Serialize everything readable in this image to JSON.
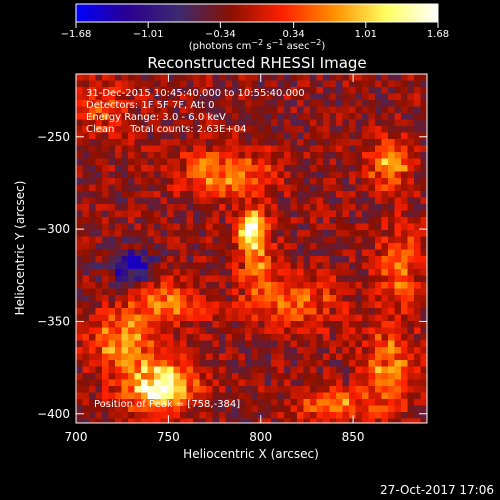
{
  "chart_data": {
    "type": "heatmap",
    "title": "Reconstructed RHESSI Image",
    "xlabel": "Heliocentric X (arcsec)",
    "ylabel": "Heliocentric Y (arcsec)",
    "xlim": [
      700,
      890
    ],
    "ylim": [
      -405,
      -216
    ],
    "x_ticks": [
      700,
      750,
      800,
      850
    ],
    "y_ticks": [
      -250,
      -300,
      -350,
      -400
    ],
    "x_tick_labels": [
      "700",
      "750",
      "800",
      "850"
    ],
    "y_tick_labels": [
      "−250",
      "−300",
      "−350",
      "−400"
    ],
    "colorbar": {
      "min": -1.68,
      "max": 1.68,
      "ticks": [
        -1.68,
        -1.01,
        -0.34,
        0.34,
        1.01,
        1.68
      ],
      "tick_labels": [
        "−1.68",
        "−1.01",
        "−0.34",
        "0.34",
        "1.01",
        "1.68"
      ],
      "unit_label_parts": [
        "(photons cm",
        "−2",
        " s",
        "−1",
        " asec",
        "−2",
        ")"
      ],
      "stops": [
        "#0000ff",
        "#2a0090",
        "#3c2a6e",
        "#8a1000",
        "#ff2000",
        "#ff9000",
        "#ffff60",
        "#ffffff"
      ]
    },
    "info_lines": [
      "31-Dec-2015 10:45:40.000 to 10:55:40.000",
      "Detectors: 1F 5F 7F, Att 0",
      "Energy Range: 3.0 - 6.0 keV",
      "Clean     Total counts: 2.63E+04"
    ],
    "peak_label": "Position of Peak = [758,-384]",
    "sources": [
      {
        "x": 795,
        "y": -300,
        "sx": 5,
        "sy": 7,
        "amp": 1.7
      },
      {
        "x": 780,
        "y": -270,
        "sx": 18,
        "sy": 9,
        "amp": 0.9
      },
      {
        "x": 798,
        "y": -320,
        "sx": 7,
        "sy": 14,
        "amp": 0.7
      },
      {
        "x": 745,
        "y": -385,
        "sx": 14,
        "sy": 9,
        "amp": 1.7
      },
      {
        "x": 725,
        "y": -360,
        "sx": 12,
        "sy": 10,
        "amp": 1.1
      },
      {
        "x": 750,
        "y": -340,
        "sx": 14,
        "sy": 8,
        "amp": 0.8
      },
      {
        "x": 820,
        "y": -340,
        "sx": 16,
        "sy": 10,
        "amp": 0.7
      },
      {
        "x": 870,
        "y": -265,
        "sx": 8,
        "sy": 10,
        "amp": 1.0
      },
      {
        "x": 875,
        "y": -320,
        "sx": 8,
        "sy": 14,
        "amp": 0.8
      },
      {
        "x": 870,
        "y": -375,
        "sx": 10,
        "sy": 16,
        "amp": 0.9
      },
      {
        "x": 840,
        "y": -395,
        "sx": 14,
        "sy": 6,
        "amp": 0.8
      },
      {
        "x": 715,
        "y": -235,
        "sx": 10,
        "sy": 10,
        "amp": 0.6
      },
      {
        "x": 730,
        "y": -320,
        "sx": 8,
        "sy": 6,
        "amp": -1.2
      }
    ]
  },
  "footer": {
    "timestamp": "27-Oct-2017 17:06"
  }
}
